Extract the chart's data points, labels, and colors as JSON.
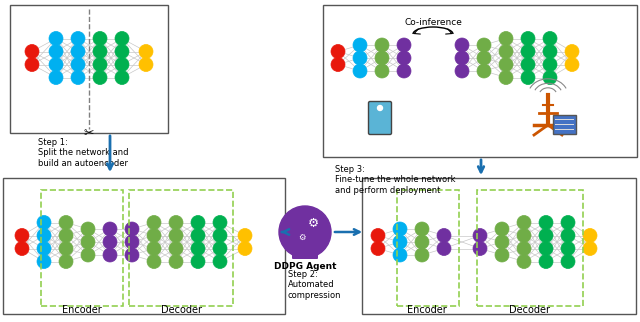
{
  "fig_width": 6.4,
  "fig_height": 3.22,
  "dpi": 100,
  "bg_color": "#ffffff",
  "step1_text": "Step 1:\nSplit the network and\nbuild an autoencoder",
  "step2_text": "Step 2:\nAutomated\ncompression",
  "step3_text": "Step 3:\nFine-tune the whole network\nand perform deployment",
  "coinference_text": "Co-inference",
  "ddpg_text": "DDPG Agent",
  "encoder_text": "Encoder",
  "decoder_text": "Decoder",
  "encoder_text2": "Encoder",
  "decoder_text2": "Decoder",
  "arrow_color": "#1a6faf",
  "connection_color": "#c8c8c8",
  "dashed_box_color": "#92d050",
  "colors": {
    "red": "#e8180c",
    "blue": "#00b0f0",
    "green": "#00b050",
    "green2": "#70ad47",
    "orange": "#ffc000",
    "purple": "#7030a0"
  }
}
